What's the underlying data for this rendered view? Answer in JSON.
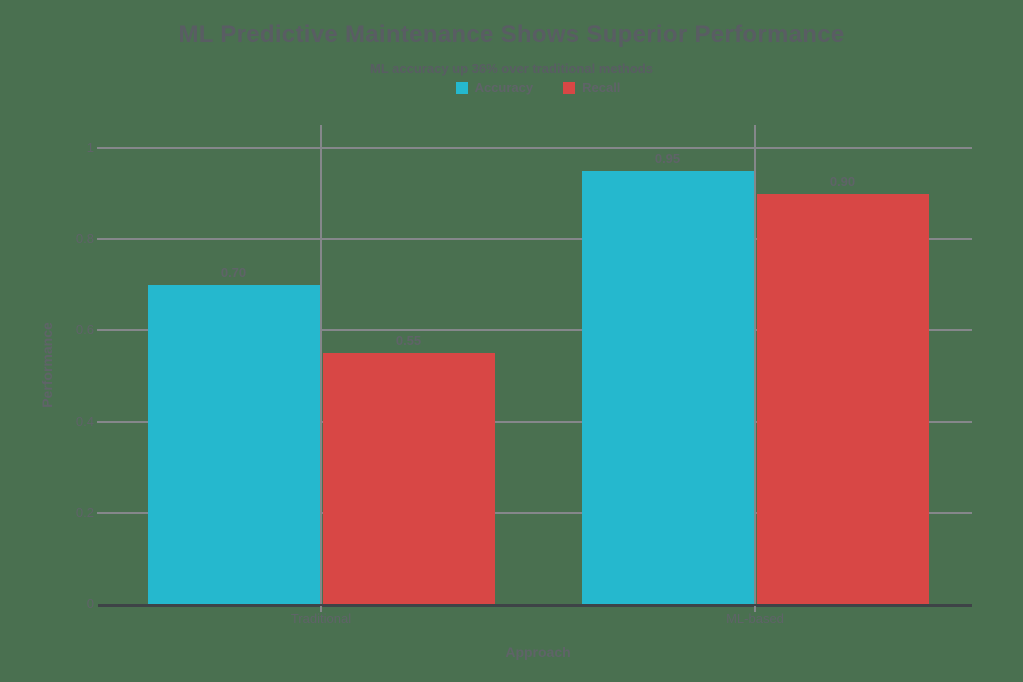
{
  "chart_data": {
    "type": "bar",
    "title": "ML Predictive Maintenance Shows Superior Performance",
    "subtitle": "ML accuracy up 36% over traditional methods",
    "xlabel": "Approach",
    "ylabel": "Performance",
    "categories": [
      "Traditional",
      "ML-based"
    ],
    "series": [
      {
        "name": "Accuracy",
        "color": "#25b8ce",
        "values": [
          0.7,
          0.95
        ],
        "labels": [
          "0.70",
          "0.95"
        ]
      },
      {
        "name": "Recall",
        "color": "#d84745",
        "values": [
          0.55,
          0.9
        ],
        "labels": [
          "0.55",
          "0.90"
        ]
      }
    ],
    "value_labels_shown": true,
    "ylim": [
      0,
      1
    ],
    "yticks": {
      "values": [
        0,
        0.2,
        0.4,
        0.6,
        0.8,
        1
      ],
      "labels": [
        "0",
        "0.2",
        "0.4",
        "0.6",
        "0.8",
        "1"
      ]
    },
    "grid": true,
    "legend_position": "top",
    "colors": {
      "background": "#4a7050",
      "gridline": "#85878b",
      "zero_line": "#3e4347",
      "title_text": "#595d63",
      "text": "#5f6368"
    }
  }
}
